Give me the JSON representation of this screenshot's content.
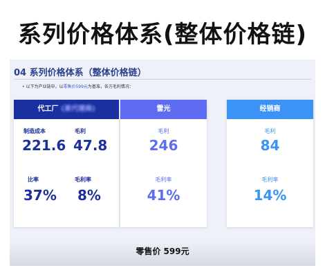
{
  "title": "系列价格体系(整体价格链)",
  "slide": {
    "section_title": "04 系列价格体系（整体价格链）",
    "note_prefix": "• 以下为产业链中，以",
    "note_highlight": "零售价599元",
    "note_suffix": "为基准，各方毛利情况：",
    "cards": [
      {
        "head": "代工厂",
        "head_blurred": "(某代理商)",
        "metrics": [
          {
            "label": "制造成本",
            "value": "221.6"
          },
          {
            "label": "毛利",
            "value": "47.8"
          },
          {
            "label": "比率",
            "value": "37%"
          },
          {
            "label": "毛利率",
            "value": "8%"
          }
        ]
      },
      {
        "head": "雷光",
        "metrics": [
          {
            "label": "毛利",
            "value": "246"
          },
          {
            "label": "毛利率",
            "value": "41%"
          }
        ]
      },
      {
        "head": "经销商",
        "metrics": [
          {
            "label": "毛利",
            "value": "84"
          },
          {
            "label": "毛利率",
            "value": "14%"
          }
        ]
      }
    ],
    "retail_price": "零售价 599元"
  },
  "colors": {
    "dark_blue": "#1a2fa0",
    "mid_blue": "#5d6cf0",
    "light_blue": "#3a93f5"
  }
}
